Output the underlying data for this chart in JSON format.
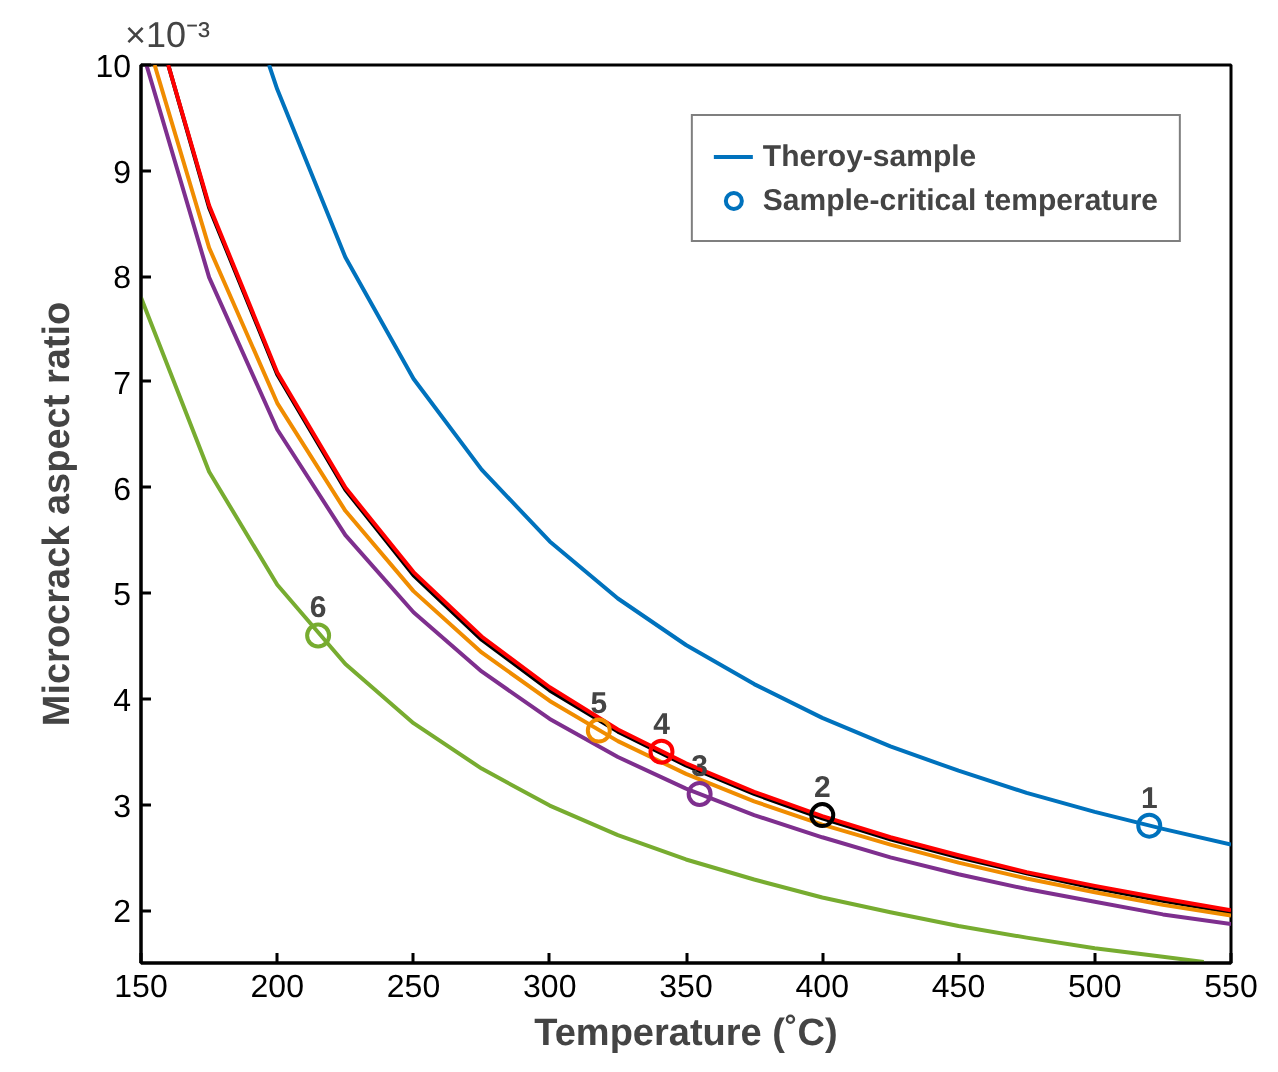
{
  "chart_data": {
    "type": "line",
    "xlabel": "Temperature (˚C)",
    "ylabel": "Microcrack aspect ratio",
    "xlim": [
      150,
      550
    ],
    "ylim": [
      1.5,
      10
    ],
    "xticks": [
      150,
      200,
      250,
      300,
      350,
      400,
      450,
      500,
      550
    ],
    "yticks": [
      2,
      3,
      4,
      5,
      6,
      7,
      8,
      9,
      10
    ],
    "grid": false,
    "legend": "top right",
    "marker": "none",
    "line_style": "solid",
    "series": [
      {
        "name": "Theroy-sample",
        "color": "#0072bd",
        "x": [
          197,
          200,
          225,
          250,
          275,
          300,
          325,
          350,
          375,
          400,
          425,
          450,
          475,
          500,
          525,
          550
        ],
        "values": [
          10.0,
          9.77,
          8.18,
          7.03,
          6.17,
          5.49,
          4.95,
          4.51,
          4.14,
          3.82,
          3.55,
          3.32,
          3.11,
          2.93,
          2.77,
          2.62
        ]
      },
      {
        "color": "#000000",
        "x": [
          160,
          175,
          200,
          225,
          250,
          275,
          300,
          325,
          350,
          375,
          400,
          425,
          450,
          475,
          500,
          525,
          550
        ],
        "values": [
          10.0,
          8.65,
          7.07,
          5.98,
          5.17,
          4.56,
          4.08,
          3.69,
          3.37,
          3.1,
          2.87,
          2.67,
          2.5,
          2.35,
          2.21,
          2.09,
          1.98
        ]
      },
      {
        "color": "#ff0000",
        "x": [
          160,
          175,
          200,
          225,
          250,
          275,
          300,
          325,
          350,
          375,
          400,
          425,
          450,
          475,
          500,
          525,
          550
        ],
        "values": [
          10.0,
          8.67,
          7.09,
          6.0,
          5.2,
          4.59,
          4.11,
          3.71,
          3.39,
          3.12,
          2.89,
          2.69,
          2.52,
          2.36,
          2.23,
          2.11,
          2.0
        ]
      },
      {
        "color": "#f08c00",
        "x": [
          155,
          175,
          200,
          225,
          250,
          275,
          300,
          325,
          350,
          375,
          400,
          425,
          450,
          475,
          500,
          525,
          550
        ],
        "values": [
          10.0,
          8.27,
          6.8,
          5.78,
          5.02,
          4.44,
          3.98,
          3.6,
          3.29,
          3.03,
          2.81,
          2.62,
          2.45,
          2.3,
          2.17,
          2.05,
          1.95
        ]
      },
      {
        "color": "#7e2f8e",
        "x": [
          152,
          175,
          200,
          225,
          250,
          275,
          300,
          325,
          350,
          375,
          400,
          425,
          450,
          475,
          500,
          525,
          550
        ],
        "values": [
          10.0,
          7.99,
          6.55,
          5.55,
          4.82,
          4.26,
          3.81,
          3.45,
          3.15,
          2.9,
          2.69,
          2.5,
          2.34,
          2.2,
          2.08,
          1.96,
          1.87
        ]
      },
      {
        "color": "#77ac30",
        "x": [
          150,
          175,
          200,
          225,
          250,
          275,
          300,
          325,
          350,
          375,
          400,
          425,
          450,
          475,
          500,
          525,
          540
        ],
        "values": [
          7.8,
          6.15,
          5.08,
          4.33,
          3.77,
          3.34,
          2.99,
          2.71,
          2.48,
          2.29,
          2.12,
          1.98,
          1.85,
          1.74,
          1.64,
          1.56,
          1.51
        ]
      },
      {
        "name": "Sample-critical temperature",
        "type": "scatter",
        "marker": "circle",
        "color": "#0072bd",
        "colors": [
          "#0072bd",
          "#000000",
          "#7e2f8e",
          "#ff0000",
          "#f08c00",
          "#77ac30"
        ],
        "x": [
          520,
          400,
          355,
          341,
          318,
          215
        ],
        "values": [
          2.8,
          2.9,
          3.1,
          3.5,
          3.7,
          4.6
        ]
      }
    ],
    "annotations": [
      "×10⁻³",
      {
        "text": "1",
        "x": 520,
        "y": 2.8
      },
      {
        "text": "2",
        "x": 400,
        "y": 2.9
      },
      {
        "text": "3",
        "x": 355,
        "y": 3.1
      },
      {
        "text": "4",
        "x": 341,
        "y": 3.5
      },
      {
        "text": "5",
        "x": 318,
        "y": 3.7
      },
      {
        "text": "6",
        "x": 215,
        "y": 4.6
      }
    ]
  }
}
